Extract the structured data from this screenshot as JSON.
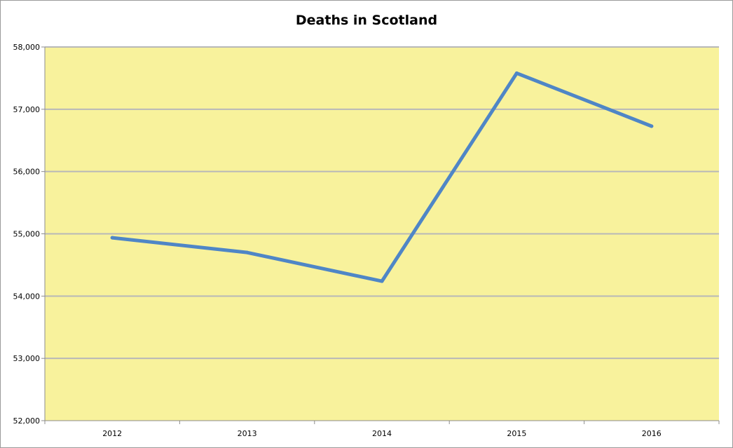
{
  "chart_data": {
    "type": "line",
    "title": "Deaths in Scotland",
    "xlabel": "",
    "ylabel": "",
    "categories": [
      "2012",
      "2013",
      "2014",
      "2015",
      "2016"
    ],
    "series": [
      {
        "values": [
          54937,
          54700,
          54239,
          57579,
          56728
        ]
      }
    ],
    "ylim": [
      52000,
      58000
    ],
    "yticks": [
      52000,
      53000,
      54000,
      55000,
      56000,
      57000,
      58000
    ],
    "ytick_labels": [
      "52,000",
      "53,000",
      "54,000",
      "55,000",
      "56,000",
      "57,000",
      "58,000"
    ],
    "grid": true,
    "legend": "none",
    "colors": {
      "plot_background": "#f8f29c",
      "line": "#4f86c6",
      "gridline": "#b8b8b8",
      "axis": "#8c8c8c"
    }
  }
}
